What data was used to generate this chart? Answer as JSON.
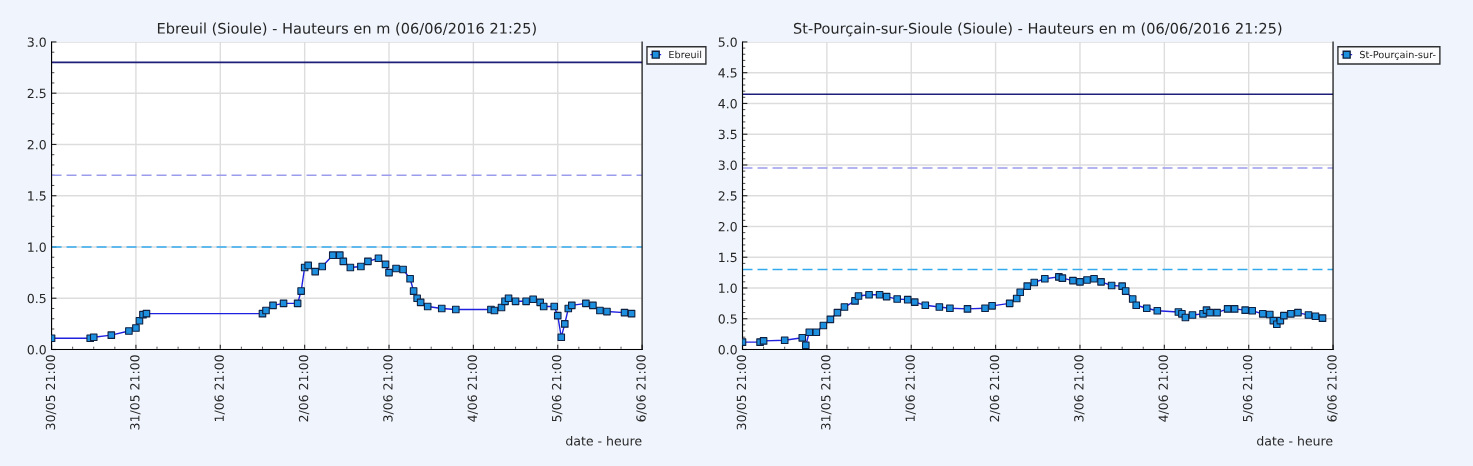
{
  "chart_data": [
    {
      "type": "line",
      "title": "Ebreuil (Sioule) - Hauteurs en m (06/06/2016 21:25)",
      "xlabel": "date - heure",
      "marker": "square",
      "line_style": "solid",
      "grid": true,
      "legend": "top right",
      "xlim": [
        "2016-05-30T21:00",
        "2016-06-06T21:00"
      ],
      "xticks": [
        {
          "value": "2016-05-30T21:00",
          "label": "30/05 21:00"
        },
        {
          "value": "2016-05-31T21:00",
          "label": "31/05 21:00"
        },
        {
          "value": "2016-06-01T21:00",
          "label": "1/06 21:00"
        },
        {
          "value": "2016-06-02T21:00",
          "label": "2/06 21:00"
        },
        {
          "value": "2016-06-03T21:00",
          "label": "3/06 21:00"
        },
        {
          "value": "2016-06-04T21:00",
          "label": "4/06 21:00"
        },
        {
          "value": "2016-06-05T21:00",
          "label": "5/06 21:00"
        },
        {
          "value": "2016-06-06T21:00",
          "label": "6/06 21:00"
        }
      ],
      "ylim": [
        0,
        3
      ],
      "yticks": [
        {
          "value": 0,
          "label": "0.0"
        },
        {
          "value": 0.5,
          "label": "0.5"
        },
        {
          "value": 1,
          "label": "1.0"
        },
        {
          "value": 1.5,
          "label": "1.5"
        },
        {
          "value": 2,
          "label": "2.0"
        },
        {
          "value": 2.5,
          "label": "2.5"
        },
        {
          "value": 3,
          "label": "3.0"
        }
      ],
      "ref_lines": [
        {
          "axis": "y",
          "value": 2.8,
          "color": "#1f1f7a",
          "line_style": "solid"
        },
        {
          "axis": "y",
          "value": 1.7,
          "color": "#9c9cec",
          "line_style": "dashed"
        },
        {
          "axis": "y",
          "value": 1.0,
          "color": "#33aaee",
          "line_style": "dashed"
        }
      ],
      "series": [
        {
          "name": "Ebreuil",
          "color": "#1e90e0",
          "x": [
            "2016-05-30T21:00",
            "2016-05-31T08:00",
            "2016-05-31T09:00",
            "2016-05-31T14:00",
            "2016-05-31T19:00",
            "2016-05-31T21:00",
            "2016-05-31T22:00",
            "2016-05-31T23:00",
            "2016-06-01T00:00",
            "2016-06-02T09:00",
            "2016-06-02T10:00",
            "2016-06-02T12:00",
            "2016-06-02T15:00",
            "2016-06-02T19:00",
            "2016-06-02T20:00",
            "2016-06-02T21:00",
            "2016-06-02T22:00",
            "2016-06-03T00:00",
            "2016-06-03T02:00",
            "2016-06-03T05:00",
            "2016-06-03T07:00",
            "2016-06-03T08:00",
            "2016-06-03T10:00",
            "2016-06-03T13:00",
            "2016-06-03T15:00",
            "2016-06-03T18:00",
            "2016-06-03T20:00",
            "2016-06-03T21:00",
            "2016-06-03T23:00",
            "2016-06-04T01:00",
            "2016-06-04T03:00",
            "2016-06-04T04:00",
            "2016-06-04T05:00",
            "2016-06-04T06:00",
            "2016-06-04T08:00",
            "2016-06-04T12:00",
            "2016-06-04T16:00",
            "2016-06-05T02:00",
            "2016-06-05T03:00",
            "2016-06-05T05:00",
            "2016-06-05T06:00",
            "2016-06-05T07:00",
            "2016-06-05T09:00",
            "2016-06-05T12:00",
            "2016-06-05T14:00",
            "2016-06-05T16:00",
            "2016-06-05T17:00",
            "2016-06-05T20:00",
            "2016-06-05T21:00",
            "2016-06-05T22:00",
            "2016-06-05T23:00",
            "2016-06-06T00:00",
            "2016-06-06T01:00",
            "2016-06-06T05:00",
            "2016-06-06T07:00",
            "2016-06-06T09:00",
            "2016-06-06T11:00",
            "2016-06-06T16:00",
            "2016-06-06T18:00"
          ],
          "values": [
            0.11,
            0.11,
            0.12,
            0.14,
            0.18,
            0.21,
            0.28,
            0.34,
            0.35,
            0.35,
            0.38,
            0.43,
            0.45,
            0.45,
            0.57,
            0.8,
            0.82,
            0.76,
            0.81,
            0.92,
            0.92,
            0.86,
            0.8,
            0.81,
            0.86,
            0.89,
            0.83,
            0.75,
            0.79,
            0.78,
            0.69,
            0.57,
            0.5,
            0.46,
            0.42,
            0.4,
            0.39,
            0.39,
            0.38,
            0.41,
            0.47,
            0.5,
            0.47,
            0.47,
            0.49,
            0.46,
            0.42,
            0.42,
            0.33,
            0.12,
            0.25,
            0.4,
            0.43,
            0.45,
            0.43,
            0.38,
            0.37,
            0.36,
            0.35
          ]
        }
      ]
    },
    {
      "type": "line",
      "title": "St-Pourçain-sur-Sioule (Sioule) - Hauteurs en m (06/06/2016 21:25)",
      "xlabel": "date - heure",
      "marker": "square",
      "line_style": "solid",
      "grid": true,
      "legend": "top right",
      "xlim": [
        "2016-05-30T21:00",
        "2016-06-06T21:00"
      ],
      "xticks": [
        {
          "value": "2016-05-30T21:00",
          "label": "30/05 21:00"
        },
        {
          "value": "2016-05-31T21:00",
          "label": "31/05 21:00"
        },
        {
          "value": "2016-06-01T21:00",
          "label": "1/06 21:00"
        },
        {
          "value": "2016-06-02T21:00",
          "label": "2/06 21:00"
        },
        {
          "value": "2016-06-03T21:00",
          "label": "3/06 21:00"
        },
        {
          "value": "2016-06-04T21:00",
          "label": "4/06 21:00"
        },
        {
          "value": "2016-06-05T21:00",
          "label": "5/06 21:00"
        },
        {
          "value": "2016-06-06T21:00",
          "label": "6/06 21:00"
        }
      ],
      "ylim": [
        0,
        5
      ],
      "yticks": [
        {
          "value": 0,
          "label": "0.0"
        },
        {
          "value": 0.5,
          "label": "0.5"
        },
        {
          "value": 1,
          "label": "1.0"
        },
        {
          "value": 1.5,
          "label": "1.5"
        },
        {
          "value": 2,
          "label": "2.0"
        },
        {
          "value": 2.5,
          "label": "2.5"
        },
        {
          "value": 3,
          "label": "3.0"
        },
        {
          "value": 3.5,
          "label": "3.5"
        },
        {
          "value": 4,
          "label": "4.0"
        },
        {
          "value": 4.5,
          "label": "4.5"
        },
        {
          "value": 5,
          "label": "5.0"
        }
      ],
      "ref_lines": [
        {
          "axis": "y",
          "value": 4.15,
          "color": "#1f1f7a",
          "line_style": "solid"
        },
        {
          "axis": "y",
          "value": 2.95,
          "color": "#9c9cec",
          "line_style": "dashed"
        },
        {
          "axis": "y",
          "value": 1.3,
          "color": "#33aaee",
          "line_style": "dashed"
        }
      ],
      "series": [
        {
          "name": "St-Pourçain-sur-",
          "color": "#1e90e0",
          "x": [
            "2016-05-30T21:00",
            "2016-05-31T02:00",
            "2016-05-31T03:00",
            "2016-05-31T09:00",
            "2016-05-31T14:00",
            "2016-05-31T15:00",
            "2016-05-31T16:00",
            "2016-05-31T18:00",
            "2016-05-31T20:00",
            "2016-05-31T22:00",
            "2016-06-01T00:00",
            "2016-06-01T02:00",
            "2016-06-01T05:00",
            "2016-06-01T06:00",
            "2016-06-01T09:00",
            "2016-06-01T12:00",
            "2016-06-01T14:00",
            "2016-06-01T17:00",
            "2016-06-01T20:00",
            "2016-06-01T22:00",
            "2016-06-02T01:00",
            "2016-06-02T05:00",
            "2016-06-02T08:00",
            "2016-06-02T13:00",
            "2016-06-02T18:00",
            "2016-06-02T20:00",
            "2016-06-03T01:00",
            "2016-06-03T03:00",
            "2016-06-03T04:00",
            "2016-06-03T06:00",
            "2016-06-03T08:00",
            "2016-06-03T11:00",
            "2016-06-03T15:00",
            "2016-06-03T16:00",
            "2016-06-03T19:00",
            "2016-06-03T21:00",
            "2016-06-03T23:00",
            "2016-06-04T01:00",
            "2016-06-04T03:00",
            "2016-06-04T06:00",
            "2016-06-04T09:00",
            "2016-06-04T10:00",
            "2016-06-04T12:00",
            "2016-06-04T13:00",
            "2016-06-04T16:00",
            "2016-06-04T19:00",
            "2016-06-05T01:00",
            "2016-06-05T02:00",
            "2016-06-05T03:00",
            "2016-06-05T05:00",
            "2016-06-05T08:00",
            "2016-06-05T09:00",
            "2016-06-05T10:00",
            "2016-06-05T12:00",
            "2016-06-05T15:00",
            "2016-06-05T17:00",
            "2016-06-05T20:00",
            "2016-06-05T22:00",
            "2016-06-06T01:00",
            "2016-06-06T03:00",
            "2016-06-06T04:00",
            "2016-06-06T05:00",
            "2016-06-06T06:00",
            "2016-06-06T07:00",
            "2016-06-06T09:00",
            "2016-06-06T11:00",
            "2016-06-06T14:00",
            "2016-06-06T16:00",
            "2016-06-06T18:00"
          ],
          "values": [
            0.12,
            0.12,
            0.14,
            0.15,
            0.19,
            0.07,
            0.28,
            0.28,
            0.39,
            0.49,
            0.6,
            0.69,
            0.79,
            0.87,
            0.89,
            0.89,
            0.86,
            0.82,
            0.81,
            0.77,
            0.72,
            0.69,
            0.67,
            0.66,
            0.67,
            0.71,
            0.75,
            0.83,
            0.93,
            1.03,
            1.09,
            1.15,
            1.18,
            1.16,
            1.12,
            1.1,
            1.13,
            1.15,
            1.1,
            1.04,
            1.03,
            0.95,
            0.82,
            0.72,
            0.67,
            0.63,
            0.61,
            0.58,
            0.52,
            0.56,
            0.58,
            0.64,
            0.6,
            0.6,
            0.66,
            0.66,
            0.64,
            0.63,
            0.58,
            0.57,
            0.47,
            0.41,
            0.47,
            0.55,
            0.58,
            0.6,
            0.56,
            0.54,
            0.51
          ]
        }
      ]
    }
  ]
}
